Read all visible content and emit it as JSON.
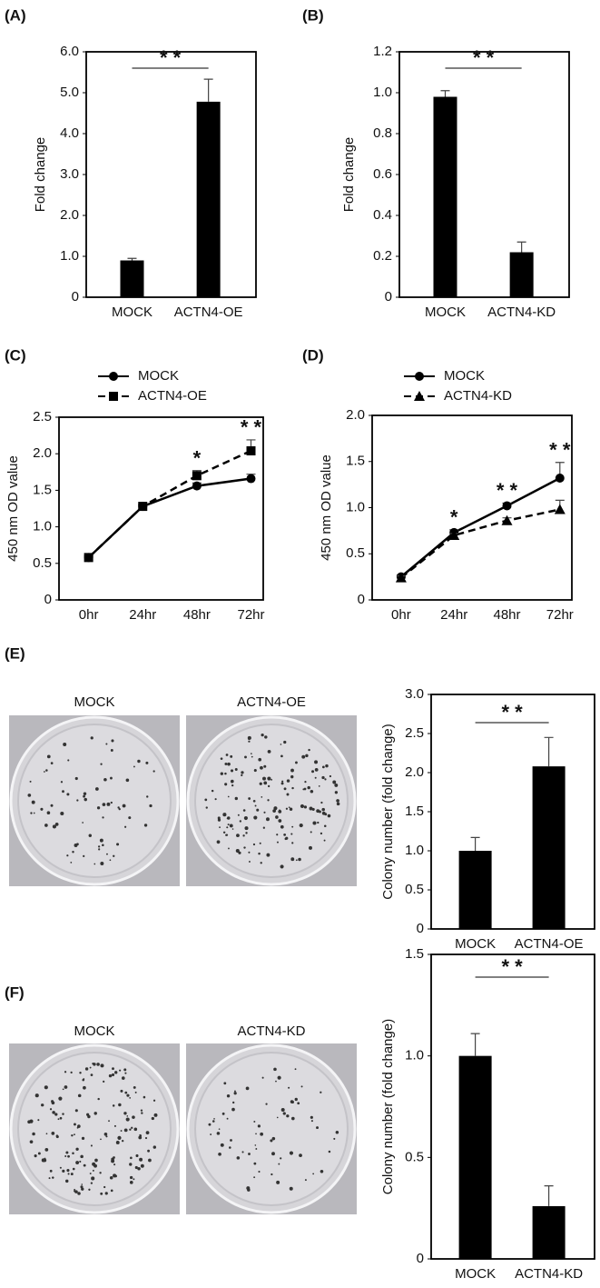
{
  "chart_data": [
    {
      "type": "bar",
      "panel": "(A)",
      "ylabel": "Fold change",
      "categories": [
        "MOCK",
        "ACTN4-OE"
      ],
      "values": [
        0.9,
        4.78
      ],
      "errors": [
        0.05,
        0.55
      ],
      "color": "#000000",
      "ylim": [
        0,
        6
      ],
      "yticks": [
        0,
        {
          "value": 1,
          "label": "1.0"
        },
        {
          "value": 2,
          "label": "2.0"
        },
        {
          "value": 3,
          "label": "3.0"
        },
        {
          "value": 4,
          "label": "4.0"
        },
        {
          "value": 5,
          "label": "5.0"
        },
        {
          "value": 6,
          "label": "6.0"
        }
      ],
      "significance": "* *"
    },
    {
      "type": "bar",
      "panel": "(B)",
      "ylabel": "Fold change",
      "categories": [
        "MOCK",
        "ACTN4-KD"
      ],
      "values": [
        0.98,
        0.22
      ],
      "errors": [
        0.03,
        0.05
      ],
      "color": "#000000",
      "ylim": [
        0,
        1.2
      ],
      "yticks": [
        0,
        0.2,
        0.4,
        0.6,
        0.8,
        {
          "value": 1,
          "label": "1.0"
        },
        1.2
      ],
      "significance": "* *"
    },
    {
      "type": "line",
      "panel": "(C)",
      "ylabel": "450 nm OD value",
      "categories": [
        "0hr",
        "24hr",
        "48hr",
        "72hr"
      ],
      "series": [
        {
          "name": "MOCK",
          "color": "#000000",
          "marker": "circle",
          "dashed": false,
          "values": [
            0.58,
            1.28,
            1.56,
            1.66
          ],
          "errors": [
            0.02,
            0.02,
            0.04,
            0.06
          ]
        },
        {
          "name": "ACTN4-OE",
          "color": "#000000",
          "marker": "square",
          "dashed": true,
          "values": [
            0.58,
            1.28,
            1.7,
            2.04
          ],
          "errors": [
            0.02,
            0.02,
            0.07,
            0.15
          ]
        }
      ],
      "ylim": [
        0,
        2.5
      ],
      "yticks": [
        0,
        0.5,
        {
          "value": 1,
          "label": "1.0"
        },
        1.5,
        {
          "value": 2,
          "label": "2.0"
        },
        2.5
      ],
      "significance": [
        null,
        null,
        "*",
        "* *"
      ]
    },
    {
      "type": "line",
      "panel": "(D)",
      "ylabel": "450 nm OD value",
      "categories": [
        "0hr",
        "24hr",
        "48hr",
        "72hr"
      ],
      "series": [
        {
          "name": "MOCK",
          "color": "#000000",
          "marker": "circle",
          "dashed": false,
          "values": [
            0.25,
            0.73,
            1.02,
            1.32
          ],
          "errors": [
            0.02,
            0.03,
            0.03,
            0.17
          ]
        },
        {
          "name": "ACTN4-KD",
          "color": "#000000",
          "marker": "triangle",
          "dashed": true,
          "values": [
            0.24,
            0.7,
            0.86,
            0.98
          ],
          "errors": [
            0.02,
            0.02,
            0.03,
            0.1
          ]
        }
      ],
      "ylim": [
        0,
        2
      ],
      "yticks": [
        0,
        0.5,
        {
          "value": 1,
          "label": "1.0"
        },
        1.5,
        {
          "value": 2,
          "label": "2.0"
        }
      ],
      "significance": [
        null,
        "*",
        "* *",
        "* *"
      ]
    },
    {
      "type": "bar",
      "panel": "(E)",
      "ylabel": "Colony number  (fold change)",
      "categories": [
        "MOCK",
        "ACTN4-OE"
      ],
      "values": [
        1.0,
        2.08
      ],
      "errors": [
        0.17,
        0.37
      ],
      "color": "#000000",
      "ylim": [
        0,
        3
      ],
      "yticks": [
        0,
        0.5,
        {
          "value": 1,
          "label": "1.0"
        },
        1.5,
        {
          "value": 2,
          "label": "2.0"
        },
        2.5,
        {
          "value": 3,
          "label": "3.0"
        }
      ],
      "significance": "* *",
      "photo_labels": [
        "MOCK",
        "ACTN4-OE"
      ]
    },
    {
      "type": "bar",
      "panel": "(F)",
      "ylabel": "Colony number (fold change)",
      "categories": [
        "MOCK",
        "ACTN4-KD"
      ],
      "values": [
        1.0,
        0.26
      ],
      "errors": [
        0.11,
        0.1
      ],
      "color": "#000000",
      "ylim": [
        0,
        1.5
      ],
      "yticks": [
        0,
        0.5,
        {
          "value": 1,
          "label": "1.0"
        },
        1.5
      ],
      "significance": "* *",
      "photo_labels": [
        "MOCK",
        "ACTN4-KD"
      ]
    }
  ]
}
